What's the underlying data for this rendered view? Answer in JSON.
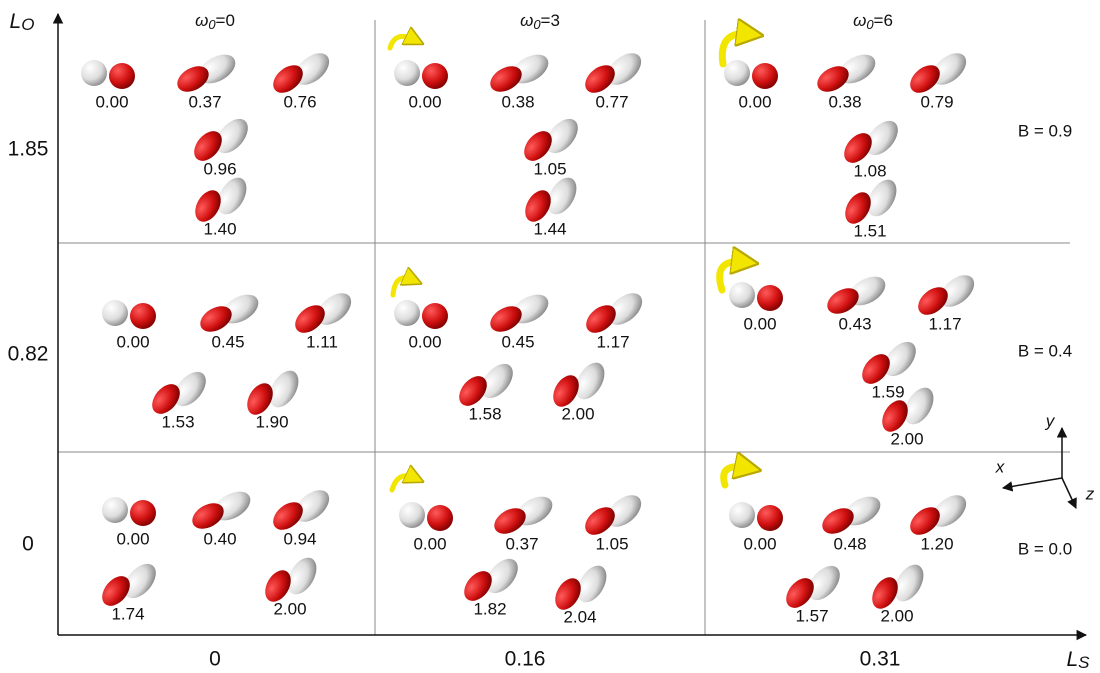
{
  "axes": {
    "y_label": {
      "main": "L",
      "sub": "O"
    },
    "x_label": {
      "main": "L",
      "sub": "S"
    },
    "row_labels": [
      "1.85",
      "0.82",
      "0"
    ],
    "col_labels": [
      "0",
      "0.16",
      "0.31"
    ]
  },
  "columns": [
    {
      "symbol": "ω",
      "sub": "0",
      "value": "=0"
    },
    {
      "symbol": "ω",
      "sub": "0",
      "value": "=3"
    },
    {
      "symbol": "ω",
      "sub": "0",
      "value": "=6"
    }
  ],
  "b_labels": [
    "B = 0.9",
    "B = 0.4",
    "B = 0.0"
  ],
  "coord_axes": {
    "x": "x",
    "y": "y",
    "z": "z"
  },
  "cells": [
    [
      [
        "0.00",
        "0.37",
        "0.76",
        "0.96",
        "1.40"
      ],
      [
        "0.00",
        "0.38",
        "0.77",
        "1.05",
        "1.44"
      ],
      [
        "0.00",
        "0.38",
        "0.79",
        "1.08",
        "1.51"
      ]
    ],
    [
      [
        "0.00",
        "0.45",
        "1.11",
        "1.53",
        "1.90"
      ],
      [
        "0.00",
        "0.45",
        "1.17",
        "1.58",
        "2.00"
      ],
      [
        "0.00",
        "0.43",
        "1.17",
        "1.59",
        "2.00"
      ]
    ],
    [
      [
        "0.00",
        "0.40",
        "0.94",
        "1.74",
        "2.00"
      ],
      [
        "0.00",
        "0.37",
        "1.05",
        "1.82",
        "2.04"
      ],
      [
        "0.00",
        "0.48",
        "1.20",
        "1.57",
        "2.00"
      ]
    ]
  ]
}
